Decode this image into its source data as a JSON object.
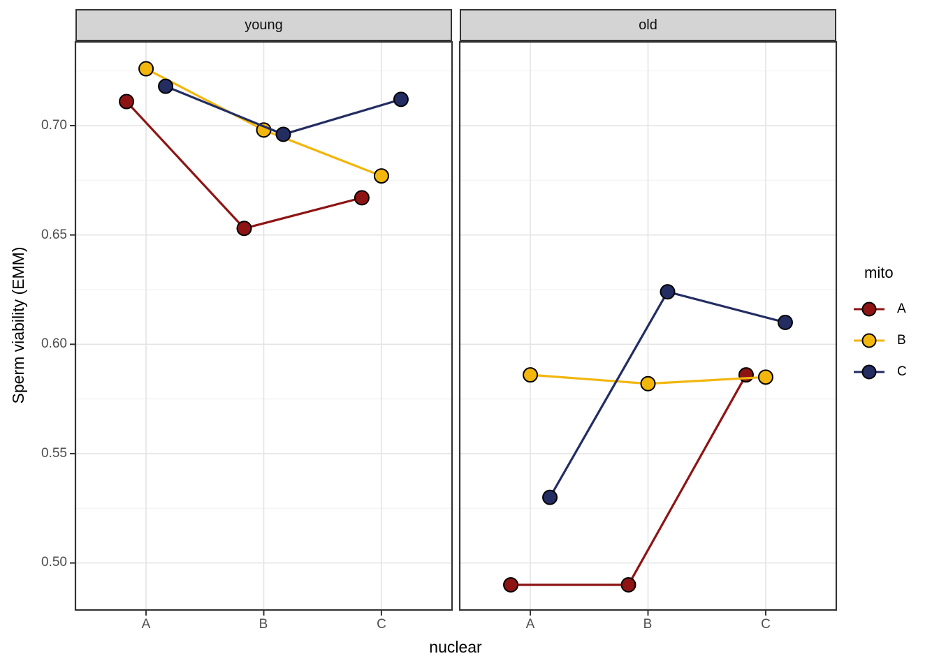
{
  "chart_data": {
    "type": "line",
    "title": "",
    "xlabel": "nuclear",
    "ylabel": "Sperm viability (EMM)",
    "facets": [
      "young",
      "old"
    ],
    "categories": [
      "A",
      "B",
      "C"
    ],
    "ytick_labels": [
      "0.70",
      "0.65",
      "0.60",
      "0.55",
      "0.50"
    ],
    "ytick_values": [
      0.7,
      0.65,
      0.6,
      0.55,
      0.5
    ],
    "yminor_values": [
      0.725,
      0.675,
      0.625,
      0.575,
      0.525
    ],
    "ylim": [
      0.4785,
      0.7383
    ],
    "grid": {
      "major": true,
      "minor": true
    },
    "point_style": "filled circle with black outline, lines connect points, points dodged within category",
    "legend": {
      "title": "mito",
      "position": "right",
      "entries": [
        {
          "label": "A",
          "color": "#8E1414"
        },
        {
          "label": "B",
          "color": "#F2B60D"
        },
        {
          "label": "C",
          "color": "#232D62"
        }
      ]
    },
    "series": [
      {
        "name": "A",
        "color": "#8E1414",
        "values": {
          "young": [
            0.711,
            0.653,
            0.667
          ],
          "old": [
            0.49,
            0.49,
            0.586
          ]
        }
      },
      {
        "name": "B",
        "color": "#F2B60D",
        "values": {
          "young": [
            0.726,
            0.698,
            0.677
          ],
          "old": [
            0.586,
            0.582,
            0.585
          ]
        }
      },
      {
        "name": "C",
        "color": "#232D62",
        "values": {
          "young": [
            0.718,
            0.696,
            0.712
          ],
          "old": [
            0.53,
            0.624,
            0.61
          ]
        }
      }
    ]
  },
  "colors": {
    "background": "#FFFFFF",
    "strip_fill": "#D4D4D4",
    "panel_border": "#333333",
    "grid_major": "#E4E4E4",
    "grid_minor": "#F2F2F2",
    "tick_mark": "#333333",
    "tick_label": "#4D4D4D",
    "point_outline": "#000000"
  }
}
